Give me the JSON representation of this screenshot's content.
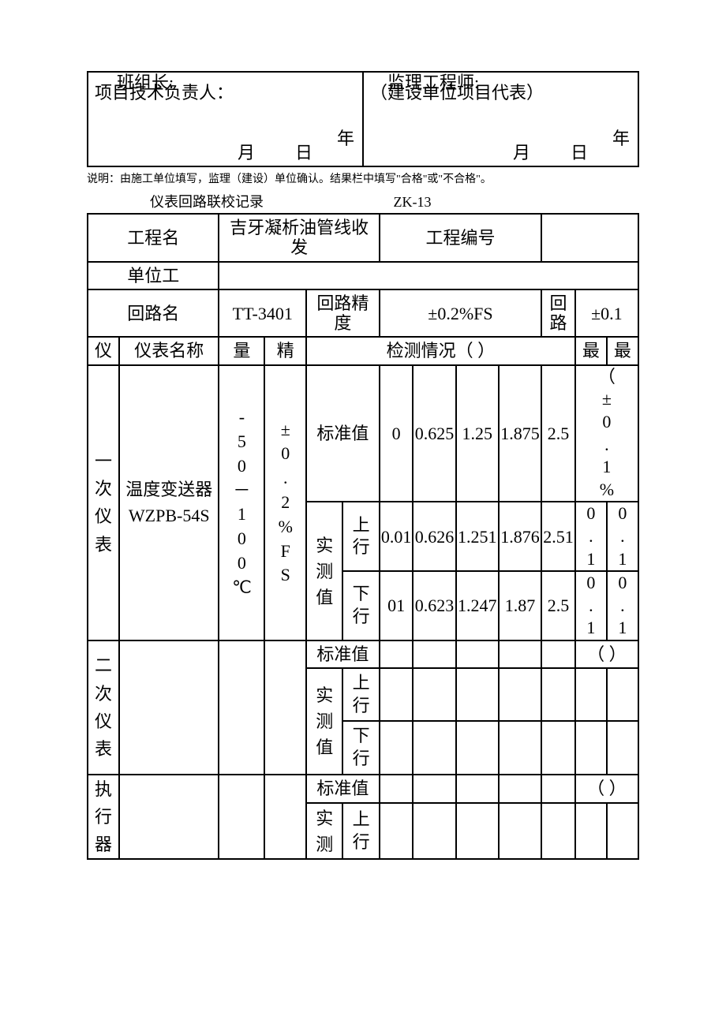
{
  "signature_box": {
    "left": {
      "line1": "班组长:",
      "line2": "项目技术负责人：",
      "date_suffix_month": "月",
      "date_suffix_day": "日",
      "date_suffix_year": "年"
    },
    "right": {
      "line1": "监理工程师:",
      "line2": "（建设单位项目代表）",
      "date_suffix_month": "月",
      "date_suffix_day": "日",
      "date_suffix_year": "年"
    }
  },
  "note": "说明：由施工单位填写，监理（建设）单位确认。结果栏中填写\"合格\"或\"不合格\"。",
  "record_title": "仪表回路联校记录",
  "record_code": "ZK-13",
  "header": {
    "project_name_label": "工程名",
    "project_name_value": "吉牙凝析油管线收发",
    "project_no_label": "工程编号",
    "unit_label": "单位工",
    "loop_name_label": "回路名",
    "loop_name_value": "TT-3401",
    "loop_precision_label": "回路精度",
    "loop_precision_value": "±0.2%FS",
    "loop_label2": "回路",
    "loop_value2": "±0.1"
  },
  "columns": {
    "instrument": "仪",
    "instrument_name": "仪表名称",
    "range": "量",
    "precision": "精",
    "detection": "检测情况（  ）",
    "max1": "最",
    "max2": "最"
  },
  "labels": {
    "standard": "标准值",
    "measured": "实测值",
    "upward": "上行",
    "downward": "下行"
  },
  "primary": {
    "category": "一次仪表",
    "name": "温度变送器\nWZPB-54S",
    "range": "-50－100℃",
    "precision": "±0.2%FS",
    "err_header": "（±0.1%",
    "standard": [
      "0",
      "0.625",
      "1.25",
      "1.875",
      "2.5"
    ],
    "up": [
      "0.01",
      "0.626",
      "1.251",
      "1.876",
      "2.51"
    ],
    "down": [
      "01",
      "0.623",
      "1.247",
      "1.87",
      "2.5"
    ],
    "up_err": [
      "0.1",
      "0.1"
    ],
    "down_err": [
      "0.1",
      "0.1"
    ]
  },
  "secondary": {
    "category": "二次仪表",
    "err_header": "（    ）"
  },
  "actuator": {
    "category": "执行器",
    "err_header": "（    ）"
  }
}
